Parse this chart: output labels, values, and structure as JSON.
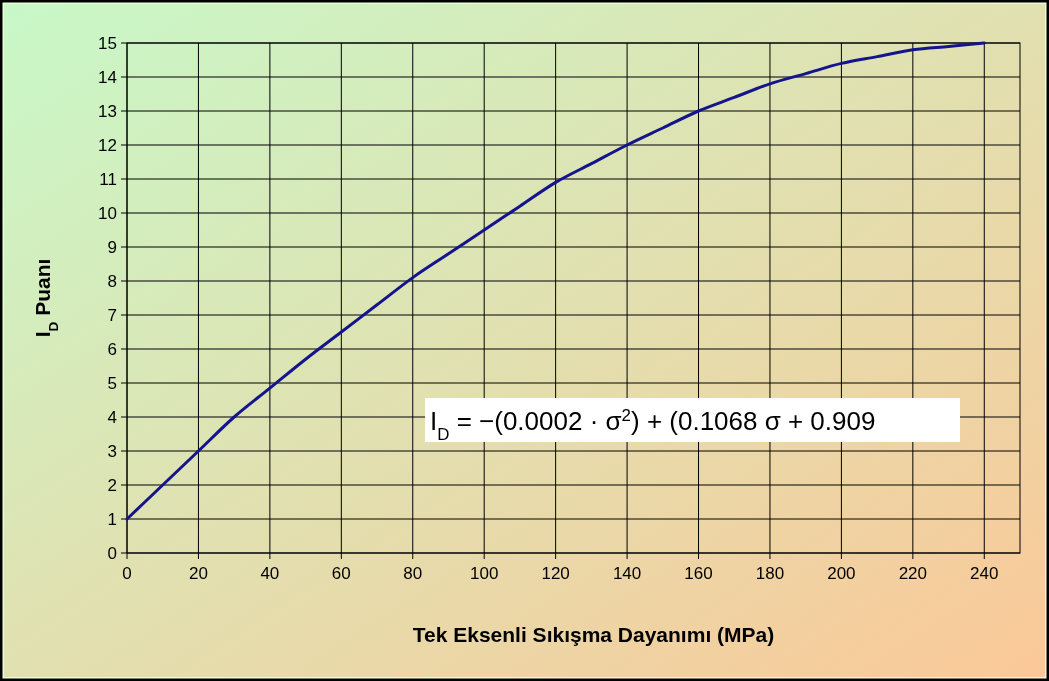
{
  "chart_data": {
    "type": "line",
    "xlabel": "Tek Eksenli Sıkışma Dayanımı (MPa)",
    "ylabel": "I$_{D}$ Puanı",
    "x": [
      0,
      10,
      20,
      30,
      40,
      50,
      60,
      70,
      80,
      90,
      100,
      110,
      120,
      130,
      140,
      150,
      160,
      170,
      180,
      190,
      200,
      210,
      220,
      230,
      240
    ],
    "series": [
      {
        "color": "#14148c",
        "values": [
          1,
          2,
          3,
          4,
          4.85,
          5.7,
          6.5,
          7.3,
          8.1,
          8.8,
          9.5,
          10.2,
          10.9,
          11.45,
          12,
          12.5,
          13,
          13.4,
          13.8,
          14.1,
          14.4,
          14.6,
          14.8,
          14.9,
          15
        ]
      }
    ],
    "xlim": [
      0,
      250
    ],
    "xticks": [
      0,
      20,
      40,
      60,
      80,
      100,
      120,
      140,
      160,
      180,
      200,
      220,
      240
    ],
    "ylim": [
      0,
      15
    ],
    "yticks": [
      0,
      1,
      2,
      3,
      4,
      5,
      6,
      7,
      8,
      9,
      10,
      11,
      12,
      13,
      14,
      15
    ],
    "grid": true,
    "marker": "none",
    "line_style": "solid",
    "annotations": [
      "I$_{D}$ = −(0.0002 · σ$^{2}$) + (0.1068 σ + 0.909"
    ]
  }
}
